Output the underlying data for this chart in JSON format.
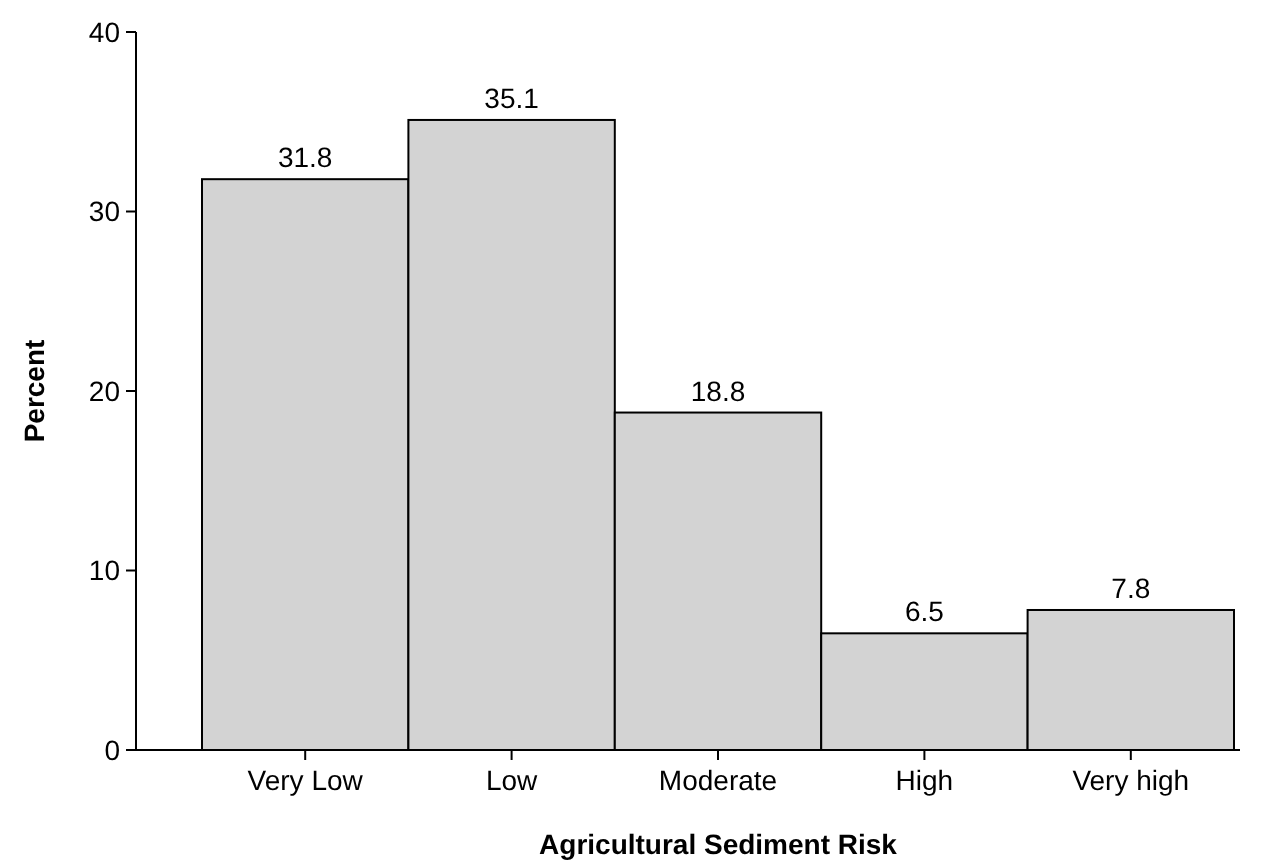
{
  "chart_data": {
    "type": "bar",
    "xlabel": "Agricultural Sediment Risk",
    "ylabel": "Percent",
    "categories": [
      "Very Low",
      "Low",
      "Moderate",
      "High",
      "Very high"
    ],
    "values": [
      31.8,
      35.1,
      18.8,
      6.5,
      7.8
    ],
    "color": "#d3d3d3",
    "ylim": [
      0,
      40
    ],
    "yticks": [
      0,
      10,
      20,
      30,
      40
    ],
    "data_labels": true,
    "grid": false
  }
}
